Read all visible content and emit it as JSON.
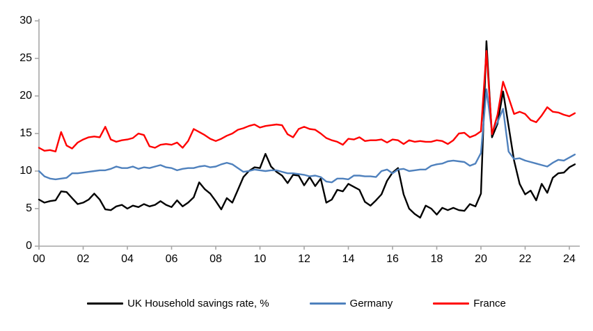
{
  "chart_data": {
    "type": "line",
    "title": "",
    "xlabel": "",
    "ylabel": "",
    "grid": false,
    "legend_position": "bottom",
    "ylim": [
      0,
      30
    ],
    "y_ticks": [
      0,
      5,
      10,
      15,
      20,
      25,
      30
    ],
    "x_ticks": [
      "00",
      "02",
      "04",
      "06",
      "08",
      "10",
      "12",
      "14",
      "16",
      "18",
      "20",
      "22",
      "24"
    ],
    "x_start_year": 2000,
    "x_step_years": 0.25,
    "x_unit": "quarterly",
    "axis_color": "#A6A6A6",
    "series": [
      {
        "name": "UK Household savings rate, %",
        "color": "#000000",
        "values": [
          6.2,
          5.8,
          6.0,
          6.1,
          7.3,
          7.2,
          6.4,
          5.6,
          5.8,
          6.2,
          7.0,
          6.2,
          4.9,
          4.8,
          5.3,
          5.5,
          5.0,
          5.4,
          5.2,
          5.6,
          5.3,
          5.5,
          6.0,
          5.5,
          5.2,
          6.1,
          5.3,
          5.8,
          6.5,
          8.5,
          7.6,
          7.0,
          6.0,
          4.9,
          6.4,
          5.8,
          7.5,
          9.2,
          10.0,
          10.5,
          10.4,
          12.3,
          10.6,
          9.9,
          9.4,
          8.4,
          9.5,
          9.4,
          8.1,
          9.2,
          8.0,
          9.0,
          5.8,
          6.2,
          7.5,
          7.3,
          8.3,
          7.9,
          7.5,
          5.9,
          5.4,
          6.1,
          6.9,
          8.7,
          9.8,
          10.4,
          6.9,
          5.0,
          4.3,
          3.8,
          5.4,
          5.0,
          4.2,
          5.1,
          4.8,
          5.1,
          4.8,
          4.7,
          5.6,
          5.3,
          7.0,
          27.3,
          14.5,
          16.3,
          20.6,
          16.0,
          11.4,
          8.3,
          6.9,
          7.4,
          6.1,
          8.3,
          7.1,
          9.1,
          9.7,
          9.8,
          10.5,
          10.9
        ]
      },
      {
        "name": "Germany",
        "color": "#4F81BD",
        "values": [
          10.0,
          9.3,
          9.0,
          8.9,
          9.0,
          9.1,
          9.7,
          9.7,
          9.8,
          9.9,
          10.0,
          10.1,
          10.1,
          10.3,
          10.6,
          10.4,
          10.4,
          10.6,
          10.3,
          10.5,
          10.4,
          10.6,
          10.8,
          10.5,
          10.4,
          10.1,
          10.3,
          10.4,
          10.4,
          10.6,
          10.7,
          10.5,
          10.6,
          10.9,
          11.1,
          10.9,
          10.4,
          9.9,
          10.0,
          10.2,
          10.1,
          10.0,
          10.1,
          10.1,
          9.9,
          9.7,
          9.7,
          9.6,
          9.5,
          9.3,
          9.4,
          9.2,
          8.6,
          8.5,
          9.0,
          9.0,
          8.9,
          9.4,
          9.4,
          9.3,
          9.3,
          9.2,
          10.0,
          10.2,
          9.7,
          10.2,
          10.3,
          10.0,
          10.1,
          10.2,
          10.2,
          10.7,
          10.9,
          11.0,
          11.3,
          11.4,
          11.3,
          11.2,
          10.7,
          11.0,
          12.4,
          20.9,
          15.2,
          16.5,
          18.3,
          12.6,
          11.6,
          11.7,
          11.4,
          11.2,
          11.0,
          10.8,
          10.6,
          11.1,
          11.5,
          11.4,
          11.8,
          12.2
        ]
      },
      {
        "name": "France",
        "color": "#FF0000",
        "values": [
          13.1,
          12.7,
          12.8,
          12.6,
          15.2,
          13.4,
          13.0,
          13.8,
          14.2,
          14.5,
          14.6,
          14.5,
          15.9,
          14.2,
          13.9,
          14.1,
          14.2,
          14.4,
          15.0,
          14.8,
          13.3,
          13.1,
          13.5,
          13.6,
          13.5,
          13.8,
          13.1,
          14.0,
          15.6,
          15.2,
          14.8,
          14.3,
          14.0,
          14.3,
          14.7,
          15.0,
          15.5,
          15.7,
          16.0,
          16.2,
          15.8,
          16.0,
          16.1,
          16.2,
          16.1,
          14.9,
          14.5,
          15.6,
          15.9,
          15.6,
          15.5,
          15.0,
          14.4,
          14.1,
          13.9,
          13.5,
          14.3,
          14.2,
          14.5,
          14.0,
          14.1,
          14.1,
          14.2,
          13.8,
          14.2,
          14.1,
          13.6,
          14.1,
          13.9,
          14.0,
          13.9,
          13.9,
          14.1,
          14.0,
          13.6,
          14.1,
          15.0,
          15.1,
          14.5,
          14.8,
          15.3,
          26.0,
          14.9,
          17.5,
          21.9,
          19.8,
          17.6,
          17.9,
          17.6,
          16.8,
          16.5,
          17.4,
          18.5,
          17.9,
          17.8,
          17.5,
          17.3,
          17.7
        ]
      }
    ]
  }
}
